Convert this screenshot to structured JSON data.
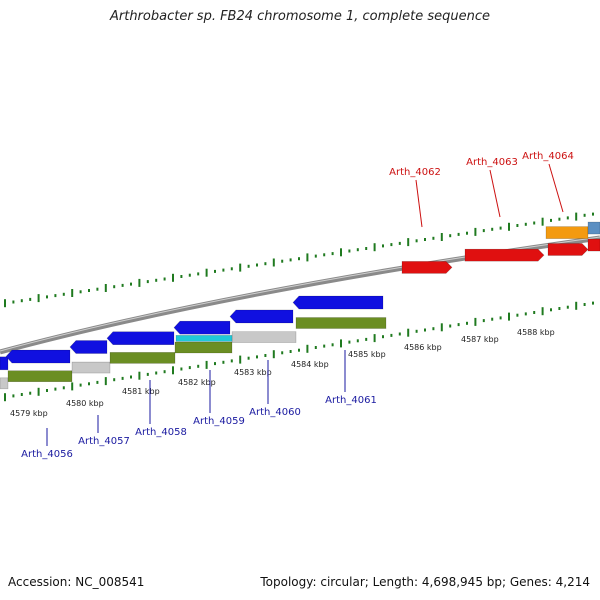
{
  "title": "Arthrobacter sp. FB24 chromosome 1, complete sequence",
  "footer": {
    "accession": "Accession: NC_008541",
    "summary": "Topology: circular; Length: 4,698,945 bp; Genes: 4,214"
  },
  "colors": {
    "forward_gene": "#1010e0",
    "reverse_gene": "#e01010",
    "highlight_orange": "#f39a10",
    "highlight_steel": "#5b8fc2",
    "cyan_feature": "#20c8d8",
    "green_feature": "#6b8e23",
    "gray_feature": "#c8c8c8",
    "axis": "#8a8a8a",
    "tick": "#1f7a1f",
    "blue_label": "#1a1aa0",
    "red_label": "#cc1111"
  },
  "ruler": {
    "unit": "kbp",
    "labels": [
      "4579 kbp",
      "4580 kbp",
      "4581 kbp",
      "4582 kbp",
      "4583 kbp",
      "4584 kbp",
      "4585 kbp",
      "4586 kbp",
      "4587 kbp",
      "4588 kbp"
    ]
  },
  "genes": {
    "forward_labels": [
      "Arth_4056",
      "Arth_4057",
      "Arth_4058",
      "Arth_4059",
      "Arth_4060",
      "Arth_4061"
    ],
    "reverse_labels": [
      "Arth_4062",
      "Arth_4063",
      "Arth_4064"
    ]
  }
}
